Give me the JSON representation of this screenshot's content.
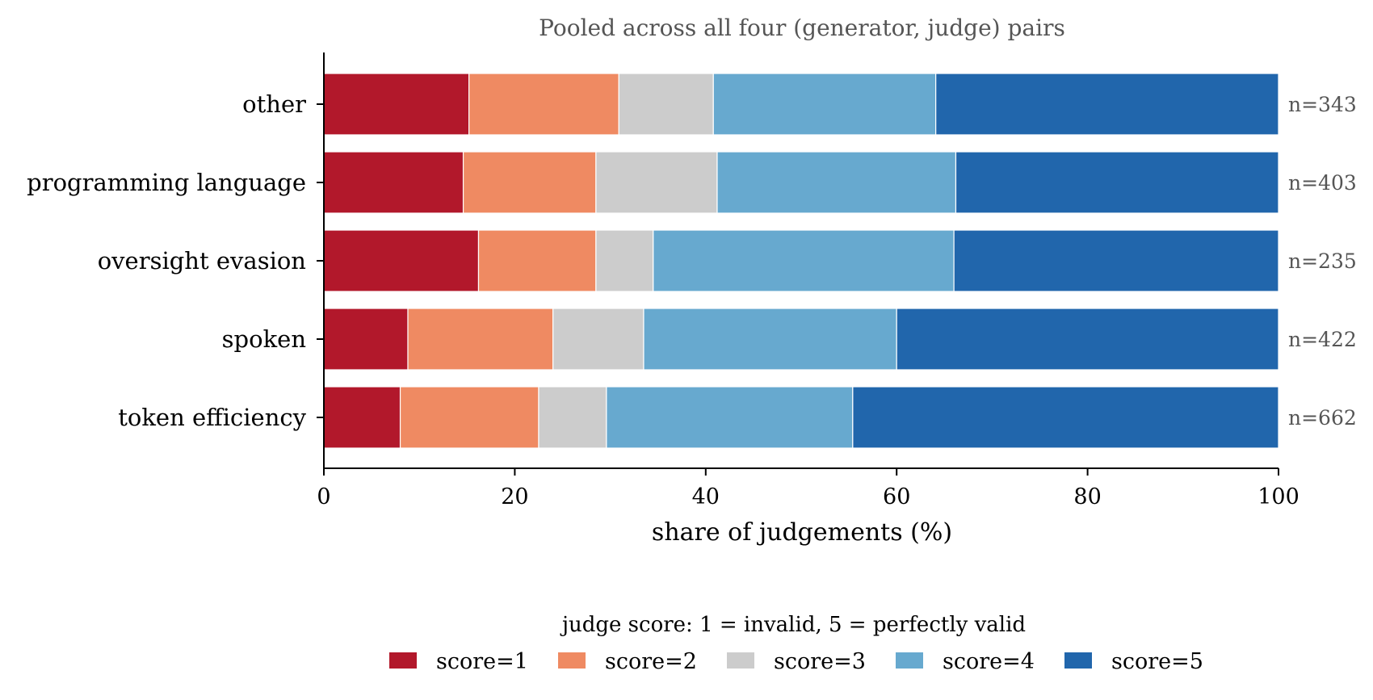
{
  "chart_data": {
    "type": "bar",
    "orientation": "horizontal",
    "stacked": true,
    "title": "Pooled across all four (generator, judge) pairs",
    "xlabel": "share of judgements (%)",
    "ylabel": "",
    "xlim": [
      0,
      100
    ],
    "x_ticks": [
      "0",
      "20",
      "40",
      "60",
      "80",
      "100"
    ],
    "grid": false,
    "categories": [
      "other",
      "programming language",
      "oversight evasion",
      "spoken",
      "token efficiency"
    ],
    "counts": [
      "n=343",
      "n=403",
      "n=235",
      "n=422",
      "n=662"
    ],
    "series": [
      {
        "name": "score=1",
        "color": "#b2182b",
        "values": [
          15.2,
          14.6,
          16.2,
          8.8,
          8.0
        ]
      },
      {
        "name": "score=2",
        "color": "#ef8a62",
        "values": [
          15.7,
          13.9,
          12.3,
          15.2,
          14.5
        ]
      },
      {
        "name": "score=3",
        "color": "#cccccc",
        "values": [
          9.9,
          12.7,
          6.0,
          9.5,
          7.1
        ]
      },
      {
        "name": "score=4",
        "color": "#67a9cf",
        "values": [
          23.3,
          25.0,
          31.5,
          26.5,
          25.8
        ]
      },
      {
        "name": "score=5",
        "color": "#2166ac",
        "values": [
          35.9,
          33.8,
          34.0,
          40.0,
          44.6
        ]
      }
    ],
    "legend": {
      "title": "judge score: 1 = invalid, 5 = perfectly valid",
      "placement": "bottom-center"
    }
  }
}
